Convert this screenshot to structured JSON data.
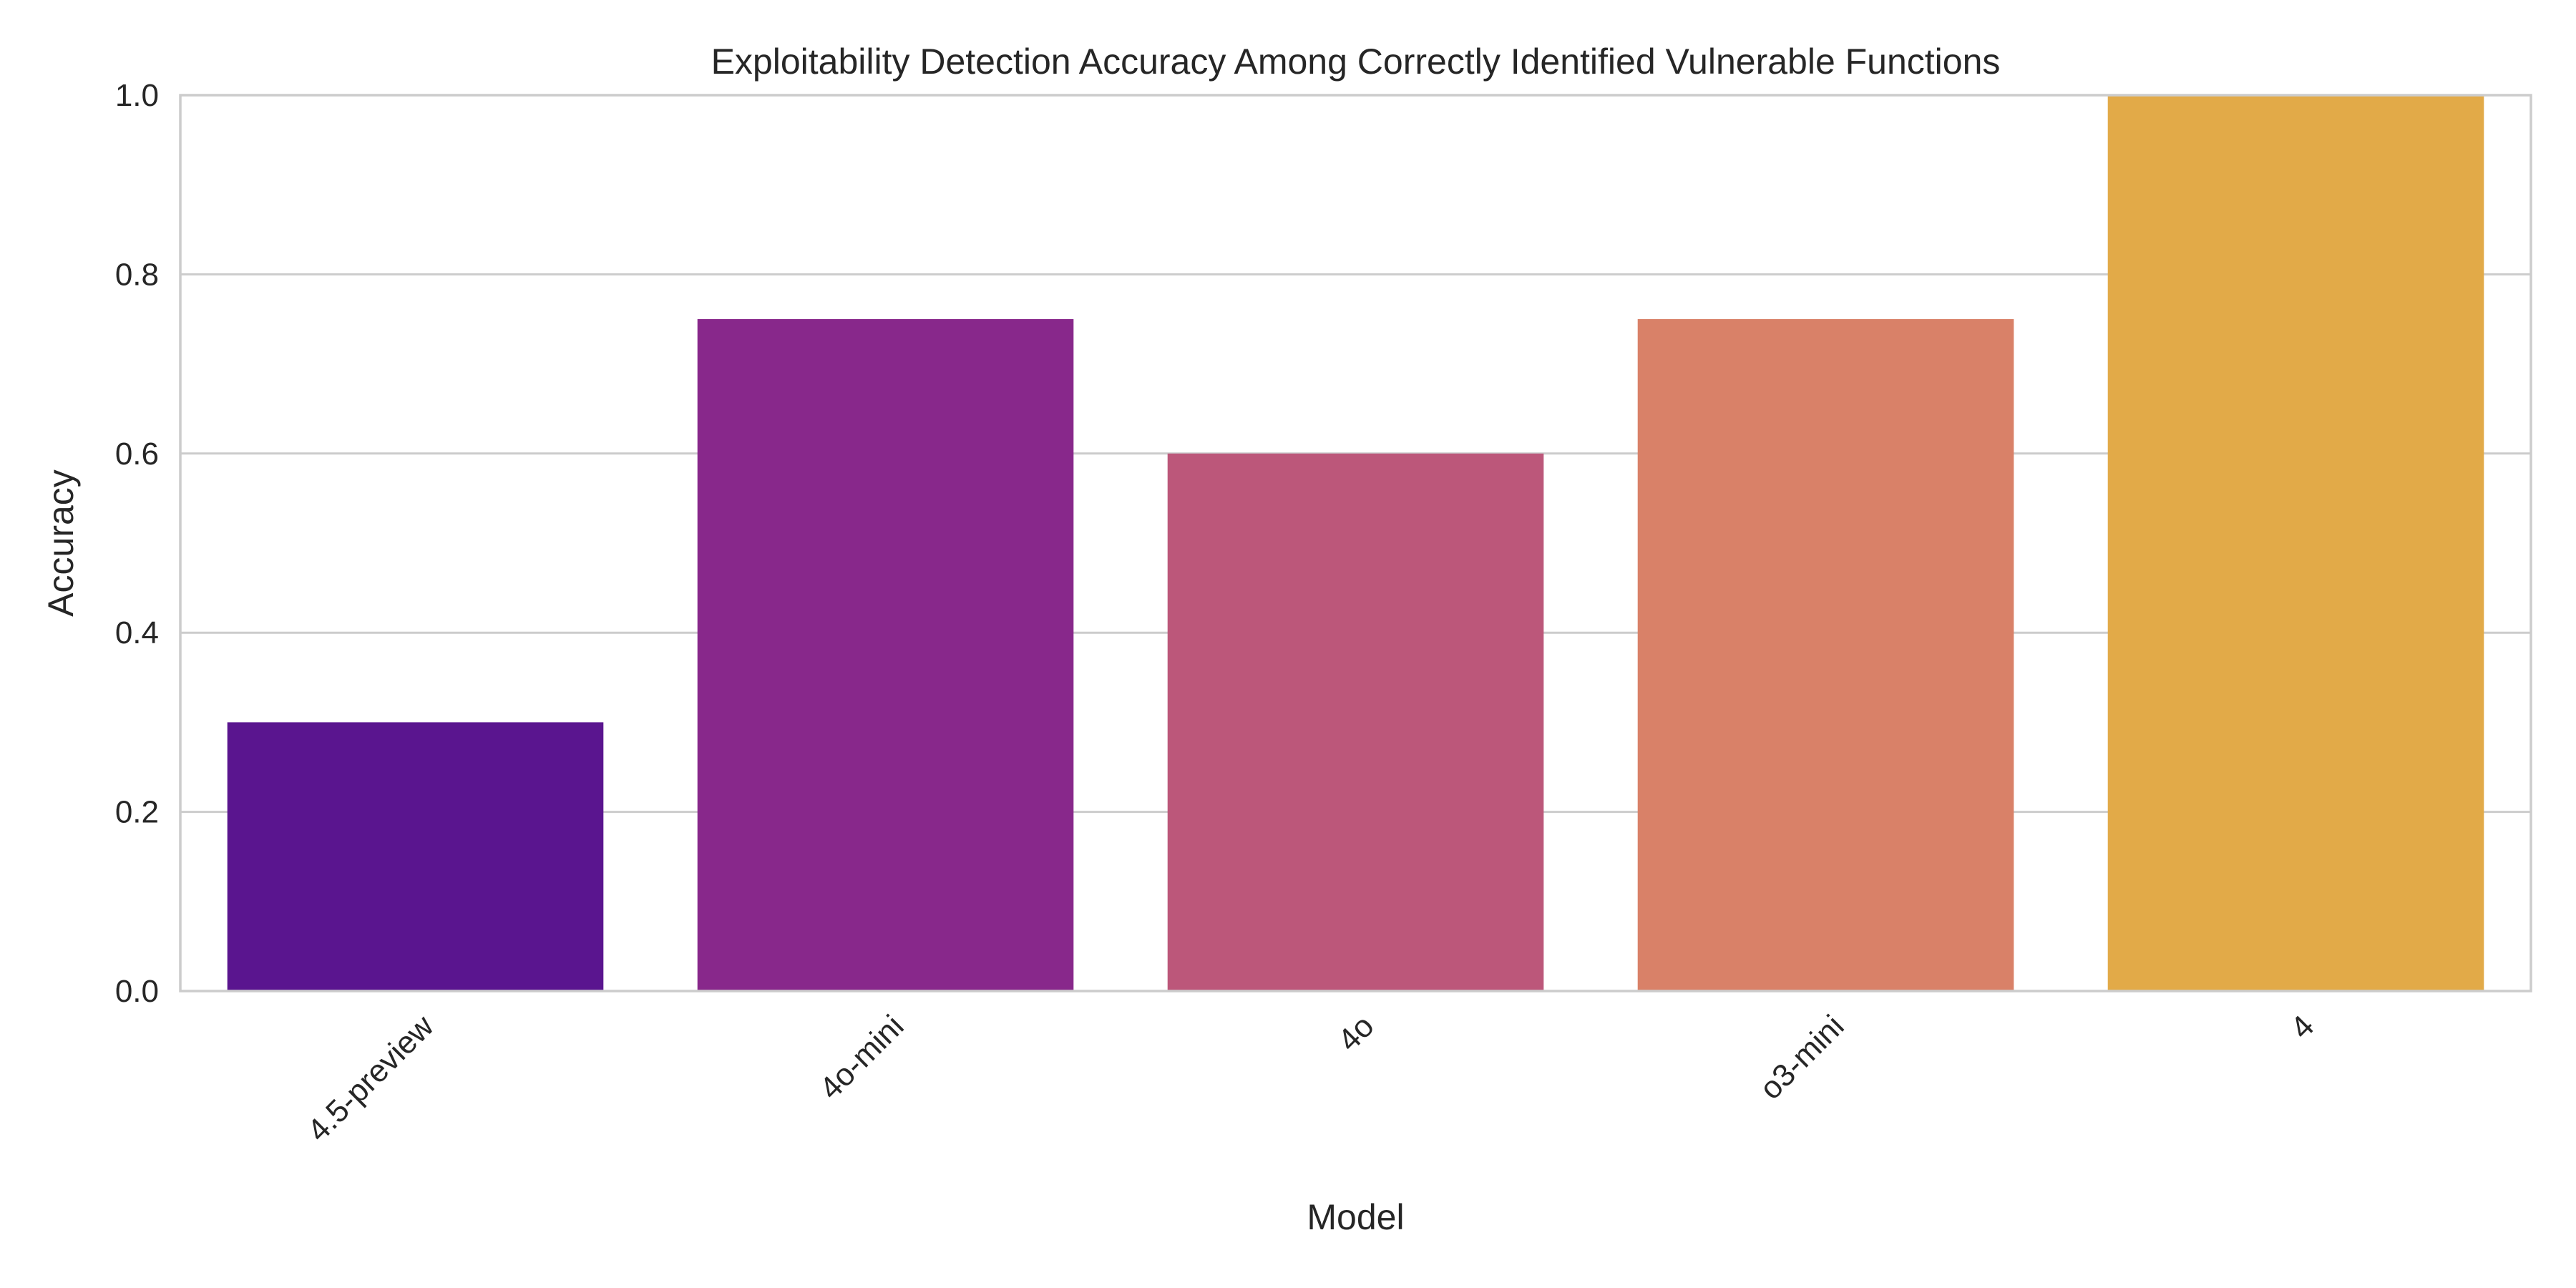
{
  "chart_data": {
    "type": "bar",
    "title": "Exploitability Detection Accuracy Among Correctly Identified Vulnerable Functions",
    "xlabel": "Model",
    "ylabel": "Accuracy",
    "categories": [
      "4.5-preview",
      "4o-mini",
      "4o",
      "o3-mini",
      "4"
    ],
    "values": [
      0.3,
      0.75,
      0.6,
      0.75,
      1.0
    ],
    "colors": [
      "#5a158f",
      "#88288b",
      "#bc577a",
      "#d98168",
      "#e2aa48"
    ],
    "ylim": [
      0,
      1.0
    ],
    "yticks": [
      "0.0",
      "0.2",
      "0.4",
      "0.6",
      "0.8",
      "1.0"
    ],
    "grid": "horizontal",
    "legend": "none"
  }
}
